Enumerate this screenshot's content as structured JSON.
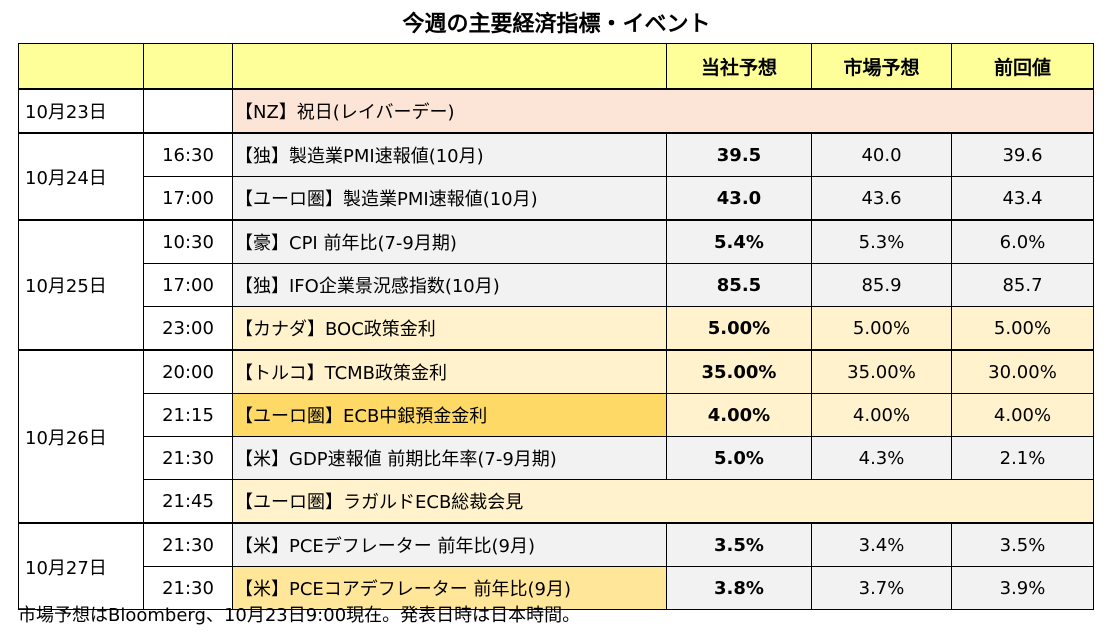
{
  "title": "今週の主要経済指標・イベント",
  "header": [
    "当社予想",
    "市場予想",
    "前回値"
  ],
  "groups": [
    {
      "date": "10月23日",
      "rows": [
        {
          "event": "【NZ】祝日(レイバーデー)"
        }
      ]
    },
    {
      "date": "10月24日",
      "rows": [
        {
          "time": "16:30",
          "event": "【独】製造業PMI速報値(10月)",
          "values": [
            "39.5",
            "40.0",
            "39.6"
          ]
        },
        {
          "time": "17:00",
          "event": "【ユーロ圏】製造業PMI速報値(10月)",
          "values": [
            "43.0",
            "43.6",
            "43.4"
          ]
        }
      ]
    },
    {
      "date": "10月25日",
      "rows": [
        {
          "time": "10:30",
          "event": "【豪】CPI 前年比(7-9月期)",
          "values": [
            "5.4%",
            "5.3%",
            "6.0%"
          ]
        },
        {
          "time": "17:00",
          "event": "【独】IFO企業景況感指数(10月)",
          "values": [
            "85.5",
            "85.9",
            "85.7"
          ]
        },
        {
          "time": "23:00",
          "event": "【カナダ】BOC政策金利",
          "values": [
            "5.00%",
            "5.00%",
            "5.00%"
          ]
        }
      ]
    },
    {
      "date": "10月26日",
      "rows": [
        {
          "time": "20:00",
          "event": "【トルコ】TCMB政策金利",
          "values": [
            "35.00%",
            "35.00%",
            "30.00%"
          ]
        },
        {
          "time": "21:15",
          "event": "【ユーロ圏】ECB中銀預金金利",
          "values": [
            "4.00%",
            "4.00%",
            "4.00%"
          ]
        },
        {
          "time": "21:30",
          "event": "【米】GDP速報値 前期比年率(7-9月期)",
          "values": [
            "5.0%",
            "4.3%",
            "2.1%"
          ]
        },
        {
          "time": "21:45",
          "event": "【ユーロ圏】ラガルドECB総裁会見"
        }
      ]
    },
    {
      "date": "10月27日",
      "rows": [
        {
          "time": "21:30",
          "event": "【米】PCEデフレーター 前年比(9月)",
          "values": [
            "3.5%",
            "3.4%",
            "3.5%"
          ]
        },
        {
          "time": "21:30",
          "event": "【米】PCEコアデフレーター 前年比(9月)",
          "values": [
            "3.8%",
            "3.7%",
            "3.9%"
          ]
        }
      ]
    }
  ],
  "footnote": "市場予想はBloomberg、10月23日9:00現在。発表日時は日本時間。"
}
